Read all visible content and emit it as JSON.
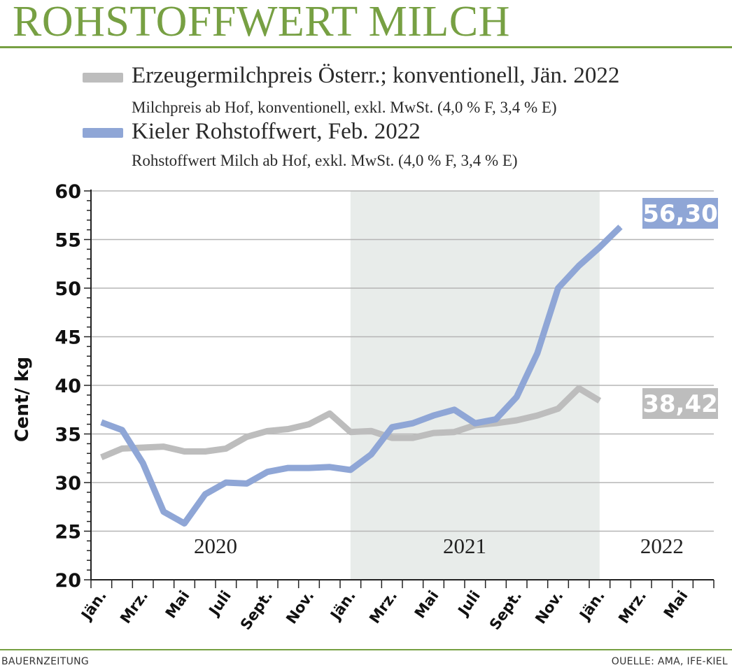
{
  "header": {
    "title": "ROHSTOFFWERT MILCH"
  },
  "legend": [
    {
      "label": "Erzeugermilchpreis Österr.; konventionell, Jän. 2022",
      "sublabel": "Milchpreis ab Hof, konventionell, exkl. MwSt. (4,0 % F, 3,4 % E)",
      "color": "#bdbdbd"
    },
    {
      "label": "Kieler Rohstoffwert, Feb. 2022",
      "sublabel": "Rohstoffwert Milch ab Hof, exkl. MwSt. (4,0 % F, 3,4 % E)",
      "color": "#8fa6d6"
    }
  ],
  "footer": {
    "left": "BAUERNZEITUNG",
    "right": "OUELLE: AMA, IFE-KIEL"
  },
  "chart_data": {
    "type": "line",
    "ylabel": "Cent/ kg",
    "ylim": [
      20,
      60
    ],
    "yticks": [
      20,
      25,
      30,
      35,
      40,
      45,
      50,
      55,
      60
    ],
    "x_tick_labels": [
      "Jän.",
      "Mrz.",
      "Mai",
      "Juli",
      "Sept.",
      "Nov.",
      "Jän.",
      "Mrz.",
      "Mai",
      "Juli",
      "Sept.",
      "Nov.",
      "Jän.",
      "Mrz.",
      "Mai"
    ],
    "x_months": [
      "2020-01",
      "2020-02",
      "2020-03",
      "2020-04",
      "2020-05",
      "2020-06",
      "2020-07",
      "2020-08",
      "2020-09",
      "2020-10",
      "2020-11",
      "2020-12",
      "2021-01",
      "2021-02",
      "2021-03",
      "2021-04",
      "2021-05",
      "2021-06",
      "2021-07",
      "2021-08",
      "2021-09",
      "2021-10",
      "2021-11",
      "2021-12",
      "2022-01",
      "2022-02",
      "2022-03",
      "2022-04",
      "2022-05",
      "2022-06"
    ],
    "years": [
      {
        "label": "2020",
        "from": "2020-01",
        "to": "2020-12",
        "shaded": false
      },
      {
        "label": "2021",
        "from": "2021-01",
        "to": "2021-12",
        "shaded": true
      },
      {
        "label": "2022",
        "from": "2022-01",
        "to": "2022-06",
        "shaded": false
      }
    ],
    "series": [
      {
        "name": "Erzeugermilchpreis Österr.; konventionell, Jän. 2022",
        "color": "#bdbdbd",
        "values": [
          32.6,
          33.5,
          33.6,
          33.7,
          33.2,
          33.2,
          33.5,
          34.7,
          35.3,
          35.5,
          36.0,
          37.1,
          35.2,
          35.3,
          34.6,
          34.6,
          35.1,
          35.2,
          35.9,
          36.1,
          36.4,
          36.9,
          37.6,
          39.7,
          38.42,
          null,
          null,
          null,
          null,
          null
        ],
        "end_label": "38,42"
      },
      {
        "name": "Kieler Rohstoffwert, Feb. 2022",
        "color": "#8fa6d6",
        "values": [
          36.2,
          35.4,
          32.0,
          27.0,
          25.8,
          28.8,
          30.0,
          29.9,
          31.1,
          31.5,
          31.5,
          31.6,
          31.3,
          32.9,
          35.7,
          36.1,
          36.9,
          37.5,
          36.1,
          36.5,
          38.8,
          43.3,
          50.0,
          52.3,
          54.2,
          56.3,
          null,
          null,
          null,
          null
        ],
        "end_label": "56,30"
      }
    ],
    "grid": "horizontal",
    "legend_position": "top"
  }
}
